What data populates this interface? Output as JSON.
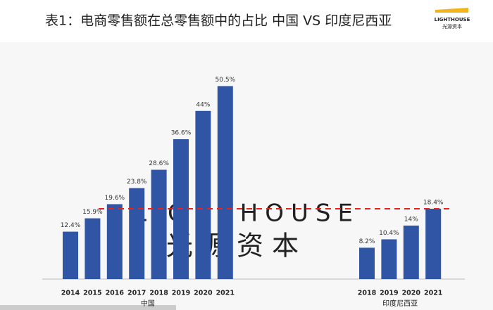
{
  "chart_data": {
    "type": "bar",
    "title": "表1：电商零售额在总零售额中的占比 中国 VS 印度尼西亚",
    "logo": {
      "name": "LIGHTHOUSE",
      "subtitle": "光源资本"
    },
    "watermark": {
      "name": "LIGHTHOUSE",
      "subtitle": "光 源 资 本"
    },
    "color": "#2f55a4",
    "ylim": [
      0,
      55
    ],
    "reference_line": {
      "color": "#e8201e",
      "dashed": true
    },
    "groups": [
      {
        "name": "中国",
        "categories": [
          "2014",
          "2015",
          "2016",
          "2017",
          "2018",
          "2019",
          "2020",
          "2021"
        ],
        "values": [
          12.4,
          15.9,
          19.6,
          23.8,
          28.6,
          36.6,
          44,
          50.5
        ],
        "value_labels": [
          "12.4%",
          "15.9%",
          "19.6%",
          "23.8%",
          "28.6%",
          "36.6%",
          "44%",
          "50.5%"
        ]
      },
      {
        "name": "印度尼西亚",
        "categories": [
          "2018",
          "2019",
          "2020",
          "2021"
        ],
        "values": [
          8.2,
          10.4,
          14,
          18.4
        ],
        "value_labels": [
          "8.2%",
          "10.4%",
          "14%",
          "18.4%"
        ]
      }
    ]
  }
}
